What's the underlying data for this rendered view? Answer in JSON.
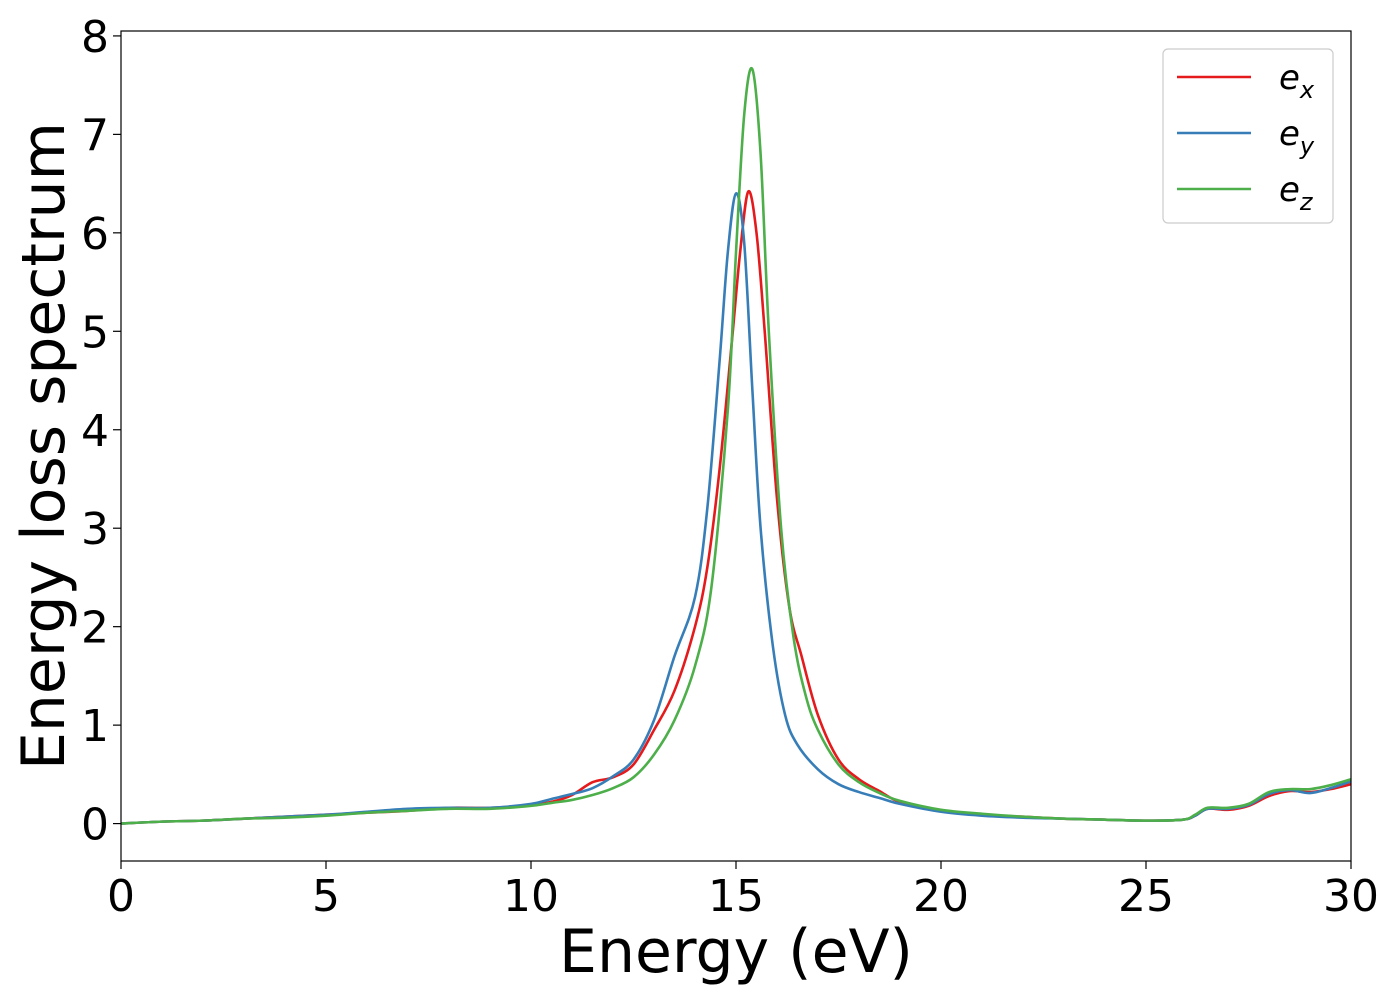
{
  "chart_data": {
    "type": "line",
    "title": "",
    "xlabel": "Energy (eV)",
    "ylabel": "Energy loss spectrum",
    "xlim": [
      0,
      30
    ],
    "ylim": [
      -0.38,
      8.05
    ],
    "xticks": [
      0,
      5,
      10,
      15,
      20,
      25,
      30
    ],
    "yticks": [
      0,
      1,
      2,
      3,
      4,
      5,
      6,
      7,
      8
    ],
    "grid": false,
    "legend_position": "top-right",
    "series": [
      {
        "name": "e_x",
        "label_main": "e",
        "label_sub": "x",
        "color": "#e41a1c",
        "x": [
          0,
          1,
          2,
          3,
          4,
          5,
          6,
          7,
          8,
          9,
          10,
          10.5,
          11,
          11.5,
          12,
          12.5,
          13,
          13.5,
          14,
          14.3,
          14.6,
          14.9,
          15.1,
          15.3,
          15.5,
          15.7,
          16,
          16.3,
          16.6,
          17,
          17.5,
          18,
          18.5,
          19,
          20,
          21,
          22,
          23,
          24,
          25,
          25.9,
          26.2,
          26.5,
          27,
          27.5,
          28,
          28.5,
          29,
          29.5,
          30
        ],
        "values": [
          0.0,
          0.02,
          0.03,
          0.05,
          0.07,
          0.09,
          0.11,
          0.13,
          0.16,
          0.16,
          0.19,
          0.22,
          0.29,
          0.42,
          0.47,
          0.6,
          0.95,
          1.35,
          2.0,
          2.6,
          3.6,
          4.9,
          5.8,
          6.42,
          6.0,
          5.0,
          3.3,
          2.2,
          1.7,
          1.1,
          0.65,
          0.45,
          0.33,
          0.22,
          0.13,
          0.09,
          0.07,
          0.05,
          0.04,
          0.03,
          0.04,
          0.08,
          0.15,
          0.14,
          0.18,
          0.28,
          0.33,
          0.32,
          0.35,
          0.4
        ]
      },
      {
        "name": "e_y",
        "label_main": "e",
        "label_sub": "y",
        "color": "#377eb8",
        "x": [
          0,
          1,
          2,
          3,
          4,
          5,
          6,
          7,
          8,
          9,
          10,
          10.5,
          11,
          11.5,
          12,
          12.5,
          13,
          13.5,
          14,
          14.3,
          14.6,
          14.8,
          15.0,
          15.2,
          15.4,
          15.6,
          15.9,
          16.2,
          16.5,
          17,
          17.5,
          18,
          18.5,
          19,
          20,
          21,
          22,
          23,
          24,
          25,
          25.9,
          26.2,
          26.5,
          27,
          27.5,
          28,
          28.5,
          29,
          29.5,
          30
        ],
        "values": [
          0.0,
          0.02,
          0.03,
          0.05,
          0.07,
          0.09,
          0.12,
          0.15,
          0.16,
          0.16,
          0.2,
          0.25,
          0.3,
          0.36,
          0.48,
          0.65,
          1.05,
          1.7,
          2.3,
          3.2,
          4.7,
          5.8,
          6.4,
          5.9,
          4.4,
          3.0,
          1.8,
          1.1,
          0.8,
          0.55,
          0.4,
          0.32,
          0.26,
          0.2,
          0.12,
          0.08,
          0.06,
          0.05,
          0.04,
          0.03,
          0.04,
          0.08,
          0.15,
          0.15,
          0.19,
          0.3,
          0.34,
          0.31,
          0.36,
          0.43
        ]
      },
      {
        "name": "e_z",
        "label_main": "e",
        "label_sub": "z",
        "color": "#4daf4a",
        "x": [
          0,
          1,
          2,
          3,
          4,
          5,
          6,
          7,
          8,
          9,
          10,
          10.5,
          11,
          11.5,
          12,
          12.5,
          13,
          13.5,
          14,
          14.4,
          14.8,
          15.0,
          15.2,
          15.4,
          15.6,
          15.8,
          16.1,
          16.4,
          16.7,
          17,
          17.5,
          18,
          18.5,
          19,
          20,
          21,
          22,
          23,
          24,
          25,
          25.9,
          26.2,
          26.5,
          27,
          27.5,
          28,
          28.5,
          29,
          29.5,
          30
        ],
        "values": [
          0.0,
          0.02,
          0.03,
          0.05,
          0.06,
          0.08,
          0.11,
          0.13,
          0.15,
          0.15,
          0.18,
          0.21,
          0.24,
          0.29,
          0.36,
          0.47,
          0.7,
          1.05,
          1.6,
          2.4,
          4.2,
          5.8,
          7.2,
          7.66,
          6.8,
          5.0,
          3.0,
          1.9,
          1.3,
          0.95,
          0.6,
          0.42,
          0.31,
          0.23,
          0.14,
          0.1,
          0.07,
          0.05,
          0.04,
          0.03,
          0.04,
          0.09,
          0.16,
          0.16,
          0.2,
          0.32,
          0.35,
          0.35,
          0.39,
          0.45
        ]
      }
    ]
  }
}
